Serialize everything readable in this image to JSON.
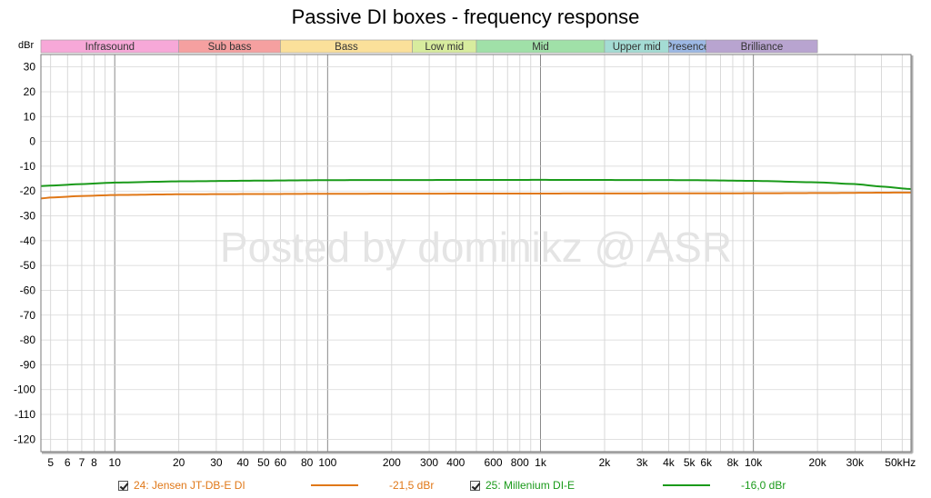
{
  "chart_data": {
    "type": "line",
    "title": "Passive DI boxes - frequency response",
    "ylabel": "dBr",
    "xlabel": "",
    "x_scale": "log",
    "xlim": [
      4.5,
      55000
    ],
    "ylim": [
      -125,
      35
    ],
    "grid": true,
    "y_ticks": [
      30,
      20,
      10,
      0,
      -10,
      -20,
      -30,
      -40,
      -50,
      -60,
      -70,
      -80,
      -90,
      -100,
      -110,
      -120
    ],
    "x_ticks": [
      {
        "value": 5,
        "label": "5"
      },
      {
        "value": 6,
        "label": "6"
      },
      {
        "value": 7,
        "label": "7"
      },
      {
        "value": 8,
        "label": "8"
      },
      {
        "value": 10,
        "label": "10"
      },
      {
        "value": 20,
        "label": "20"
      },
      {
        "value": 30,
        "label": "30"
      },
      {
        "value": 40,
        "label": "40"
      },
      {
        "value": 50,
        "label": "50"
      },
      {
        "value": 60,
        "label": "60"
      },
      {
        "value": 80,
        "label": "80"
      },
      {
        "value": 100,
        "label": "100"
      },
      {
        "value": 200,
        "label": "200"
      },
      {
        "value": 300,
        "label": "300"
      },
      {
        "value": 400,
        "label": "400"
      },
      {
        "value": 600,
        "label": "600"
      },
      {
        "value": 800,
        "label": "800"
      },
      {
        "value": 1000,
        "label": "1k"
      },
      {
        "value": 2000,
        "label": "2k"
      },
      {
        "value": 3000,
        "label": "3k"
      },
      {
        "value": 4000,
        "label": "4k"
      },
      {
        "value": 5000,
        "label": "5k"
      },
      {
        "value": 6000,
        "label": "6k"
      },
      {
        "value": 8000,
        "label": "8k"
      },
      {
        "value": 10000,
        "label": "10k"
      },
      {
        "value": 20000,
        "label": "20k"
      },
      {
        "value": 30000,
        "label": "30k"
      },
      {
        "value": 50000,
        "label": "50kHz"
      }
    ],
    "bands": [
      {
        "name": "Infrasound",
        "from": 4.5,
        "to": 20,
        "color": "#f7a8d8"
      },
      {
        "name": "Sub bass",
        "from": 20,
        "to": 60,
        "color": "#f5a0a0"
      },
      {
        "name": "Bass",
        "from": 60,
        "to": 250,
        "color": "#fbe09a"
      },
      {
        "name": "Low mid",
        "from": 250,
        "to": 500,
        "color": "#d8ec9e"
      },
      {
        "name": "Mid",
        "from": 500,
        "to": 2000,
        "color": "#a0e0a8"
      },
      {
        "name": "Upper mid",
        "from": 2000,
        "to": 4000,
        "color": "#a4dcd4"
      },
      {
        "name": "Presence",
        "from": 4000,
        "to": 6000,
        "color": "#9cb8e4"
      },
      {
        "name": "Brilliance",
        "from": 6000,
        "to": 20000,
        "color": "#b8a4d0"
      }
    ],
    "series": [
      {
        "name": "24: Jensen JT-DB-E DI",
        "value_label": "-21,5 dBr",
        "color": "#e07818",
        "points": [
          [
            4.5,
            -23.0
          ],
          [
            5,
            -22.6
          ],
          [
            7,
            -22.0
          ],
          [
            10,
            -21.6
          ],
          [
            20,
            -21.3
          ],
          [
            50,
            -21.2
          ],
          [
            100,
            -21.1
          ],
          [
            1000,
            -21.0
          ],
          [
            10000,
            -20.9
          ],
          [
            20000,
            -20.8
          ],
          [
            55000,
            -20.6
          ]
        ]
      },
      {
        "name": "25: Millenium DI-E",
        "value_label": "-16,0 dBr",
        "color": "#1a9a1a",
        "points": [
          [
            4.5,
            -18.0
          ],
          [
            5,
            -17.8
          ],
          [
            7,
            -17.2
          ],
          [
            10,
            -16.6
          ],
          [
            20,
            -16.1
          ],
          [
            50,
            -15.8
          ],
          [
            100,
            -15.6
          ],
          [
            1000,
            -15.5
          ],
          [
            5000,
            -15.6
          ],
          [
            10000,
            -15.9
          ],
          [
            20000,
            -16.5
          ],
          [
            30000,
            -17.2
          ],
          [
            40000,
            -18.2
          ],
          [
            55000,
            -19.2
          ]
        ]
      }
    ],
    "watermark": "Posted by dominikz @ ASR"
  }
}
